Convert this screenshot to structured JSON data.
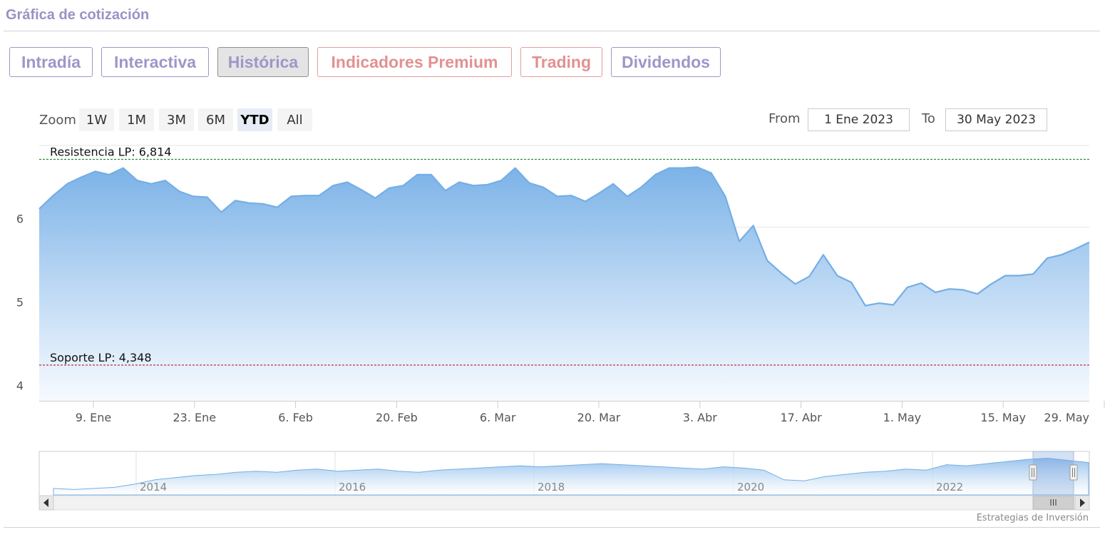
{
  "header": {
    "title": "Gráfica de cotización"
  },
  "tabs": [
    {
      "label": "Intradía",
      "active": false,
      "premium": false
    },
    {
      "label": "Interactiva",
      "active": false,
      "premium": false
    },
    {
      "label": "Histórica",
      "active": true,
      "premium": false
    },
    {
      "label": "Indicadores Premium",
      "active": false,
      "premium": true
    },
    {
      "label": "Trading",
      "active": false,
      "premium": true
    },
    {
      "label": "Dividendos",
      "active": false,
      "premium": false
    }
  ],
  "zoom": {
    "label": "Zoom",
    "buttons": [
      "1W",
      "1M",
      "3M",
      "6M",
      "YTD",
      "All"
    ],
    "active": "YTD"
  },
  "range": {
    "from_label": "From",
    "from_value": "1 Ene 2023",
    "to_label": "To",
    "to_value": "30 May 2023"
  },
  "colors": {
    "accent": "#9a92c4",
    "premium": "#e29191",
    "series_line": "#74aee6",
    "resistance": "#1f8a2d",
    "support": "#b71c2a"
  },
  "chart_data": {
    "type": "area",
    "x_axis": {
      "ticks": [
        "9. Ene",
        "23. Ene",
        "6. Feb",
        "20. Feb",
        "6. Mar",
        "20. Mar",
        "3. Abr",
        "17. Abr",
        "1. May",
        "15. May",
        "29. May"
      ]
    },
    "y_axis": {
      "ticks": [
        "4",
        "5",
        "6"
      ],
      "range": [
        3.92,
        6.98
      ]
    },
    "x_range": [
      1,
      151
    ],
    "series": [
      {
        "x": [
          1,
          3,
          5,
          7,
          9,
          11,
          13,
          15,
          17,
          19,
          21,
          23,
          25,
          27,
          29,
          31,
          33,
          35,
          37,
          39,
          41,
          43,
          45,
          47,
          49,
          51,
          53,
          55,
          57,
          59,
          61,
          63,
          65,
          67,
          69,
          71,
          73,
          75,
          77,
          79,
          81,
          83,
          85,
          87,
          89,
          91,
          93,
          95,
          97,
          99,
          101,
          103,
          105,
          107,
          109,
          111,
          113,
          115,
          117,
          119,
          121,
          123,
          125,
          127,
          129,
          131,
          133,
          135,
          137,
          139,
          141,
          143,
          145,
          147,
          149,
          151
        ],
        "values": [
          6.22,
          6.38,
          6.52,
          6.6,
          6.67,
          6.63,
          6.71,
          6.56,
          6.52,
          6.56,
          6.43,
          6.37,
          6.36,
          6.18,
          6.32,
          6.29,
          6.28,
          6.24,
          6.37,
          6.38,
          6.38,
          6.5,
          6.54,
          6.45,
          6.35,
          6.47,
          6.5,
          6.63,
          6.63,
          6.44,
          6.54,
          6.5,
          6.51,
          6.56,
          6.71,
          6.53,
          6.48,
          6.37,
          6.38,
          6.31,
          6.41,
          6.52,
          6.37,
          6.48,
          6.63,
          6.71,
          6.71,
          6.72,
          6.65,
          6.37,
          5.83,
          6.02,
          5.6,
          5.45,
          5.32,
          5.41,
          5.67,
          5.42,
          5.34,
          5.06,
          5.09,
          5.07,
          5.28,
          5.33,
          5.22,
          5.26,
          5.25,
          5.2,
          5.32,
          5.42,
          5.42,
          5.44,
          5.63,
          5.67,
          5.74,
          5.82
        ],
        "fill_top": "#74aee6",
        "fill_bottom": "#f6faff"
      }
    ],
    "reference_lines": [
      {
        "label": "Resistencia LP: 6,814",
        "value": 6.814,
        "color": "#1f8a2d"
      },
      {
        "label": "Soporte LP: 4,348",
        "value": 4.348,
        "color": "#b71c2a"
      }
    ],
    "navigator": {
      "year_labels": [
        "2014",
        "2016",
        "2018",
        "2020",
        "2022"
      ],
      "values": [
        3.1,
        3.0,
        3.1,
        3.2,
        3.5,
        3.9,
        4.1,
        4.3,
        4.4,
        4.6,
        4.7,
        4.6,
        4.8,
        4.9,
        4.7,
        4.8,
        4.9,
        4.7,
        4.6,
        4.8,
        4.9,
        5.0,
        5.1,
        5.2,
        5.1,
        5.2,
        5.3,
        5.4,
        5.3,
        5.2,
        5.1,
        5.0,
        4.9,
        5.1,
        5.0,
        4.8,
        3.9,
        3.8,
        4.2,
        4.4,
        4.6,
        4.7,
        4.9,
        4.8,
        5.3,
        5.2,
        5.4,
        5.6,
        5.8,
        5.9,
        5.7,
        5.5
      ],
      "credit": "Estrategias de Inversión"
    }
  }
}
